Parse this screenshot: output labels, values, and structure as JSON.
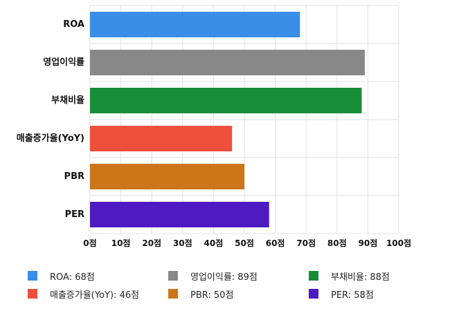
{
  "chart_data": {
    "type": "bar",
    "orientation": "horizontal",
    "categories": [
      "ROA",
      "영업이익률",
      "부채비율",
      "매출증가율(YoY)",
      "PBR",
      "PER"
    ],
    "values": [
      68,
      89,
      88,
      46,
      50,
      58
    ],
    "colors": [
      "#3b8ee8",
      "#888888",
      "#178d37",
      "#ee4f3b",
      "#cc7619",
      "#4e1ac2"
    ],
    "xlim": [
      0,
      100
    ],
    "xticks": [
      0,
      10,
      20,
      30,
      40,
      50,
      60,
      70,
      80,
      90,
      100
    ],
    "tick_suffix": "점",
    "grid": true,
    "legend_position": "bottom",
    "legend": [
      "ROA: 68점",
      "영업이익률: 89점",
      "부채비율: 88점",
      "매출증가율(YoY): 46점",
      "PBR: 50점",
      "PER: 58점"
    ]
  }
}
